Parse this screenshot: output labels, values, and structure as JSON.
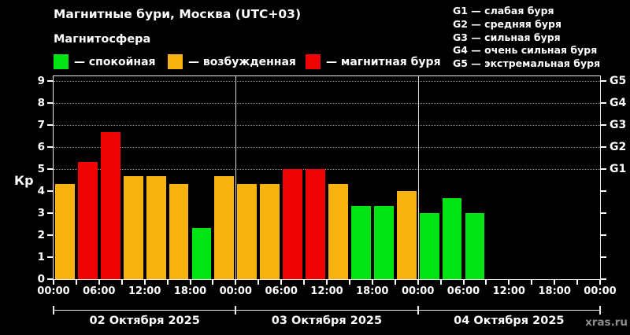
{
  "header": {
    "title": "Магнитные бури, Москва (UTC+03)",
    "subtitle": "Магнитосфера"
  },
  "legend": [
    {
      "state": "quiet",
      "label": "— спокойная"
    },
    {
      "state": "unsettled",
      "label": "— возбужденная"
    },
    {
      "state": "storm",
      "label": "— магнитная буря"
    }
  ],
  "g_scale": [
    "G1 — слабая буря",
    "G2 — средняя буря",
    "G3 — сильная буря",
    "G4 — очень сильная буря",
    "G5 — экстремальная буря"
  ],
  "colors": {
    "quiet": "#00e414",
    "unsettled": "#f9b311",
    "storm": "#ee0404",
    "grid": "#8f8f8f",
    "axis": "#ededed",
    "text": "#ffffff",
    "watermark": "#8d8d8d"
  },
  "chart_data": {
    "type": "bar",
    "title": "Магнитные бури, Москва (UTC+03)",
    "ylabel": "Кр",
    "ylim": [
      0,
      9.2
    ],
    "yticks": [
      0,
      1,
      2,
      3,
      4,
      5,
      6,
      7,
      8,
      9
    ],
    "grid_kp": [
      5,
      6,
      7,
      8,
      9
    ],
    "right_axis_labels": [
      {
        "label": "G1",
        "kp": 5
      },
      {
        "label": "G2",
        "kp": 6
      },
      {
        "label": "G3",
        "kp": 7
      },
      {
        "label": "G4",
        "kp": 8
      },
      {
        "label": "G5",
        "kp": 9
      }
    ],
    "hours_per_bar": 3,
    "time_labels": [
      "00:00",
      "06:00",
      "12:00",
      "18:00"
    ],
    "days": [
      {
        "date": "02 Октября 2025",
        "values": [
          4.33,
          5.33,
          6.67,
          4.67,
          4.67,
          4.33,
          2.33,
          4.67
        ],
        "states": [
          "unsettled",
          "storm",
          "storm",
          "unsettled",
          "unsettled",
          "unsettled",
          "quiet",
          "unsettled"
        ]
      },
      {
        "date": "03 Октября 2025",
        "values": [
          4.33,
          4.33,
          5.0,
          5.0,
          4.33,
          3.33,
          3.33,
          4.0
        ],
        "states": [
          "unsettled",
          "unsettled",
          "storm",
          "storm",
          "unsettled",
          "quiet",
          "quiet",
          "unsettled"
        ]
      },
      {
        "date": "04 Октября 2025",
        "values": [
          3.0,
          3.67,
          3.0,
          null,
          null,
          null,
          null,
          null
        ],
        "states": [
          "quiet",
          "quiet",
          "quiet",
          null,
          null,
          null,
          null,
          null
        ]
      }
    ]
  },
  "footer": {
    "watermark": "xras.ru"
  }
}
